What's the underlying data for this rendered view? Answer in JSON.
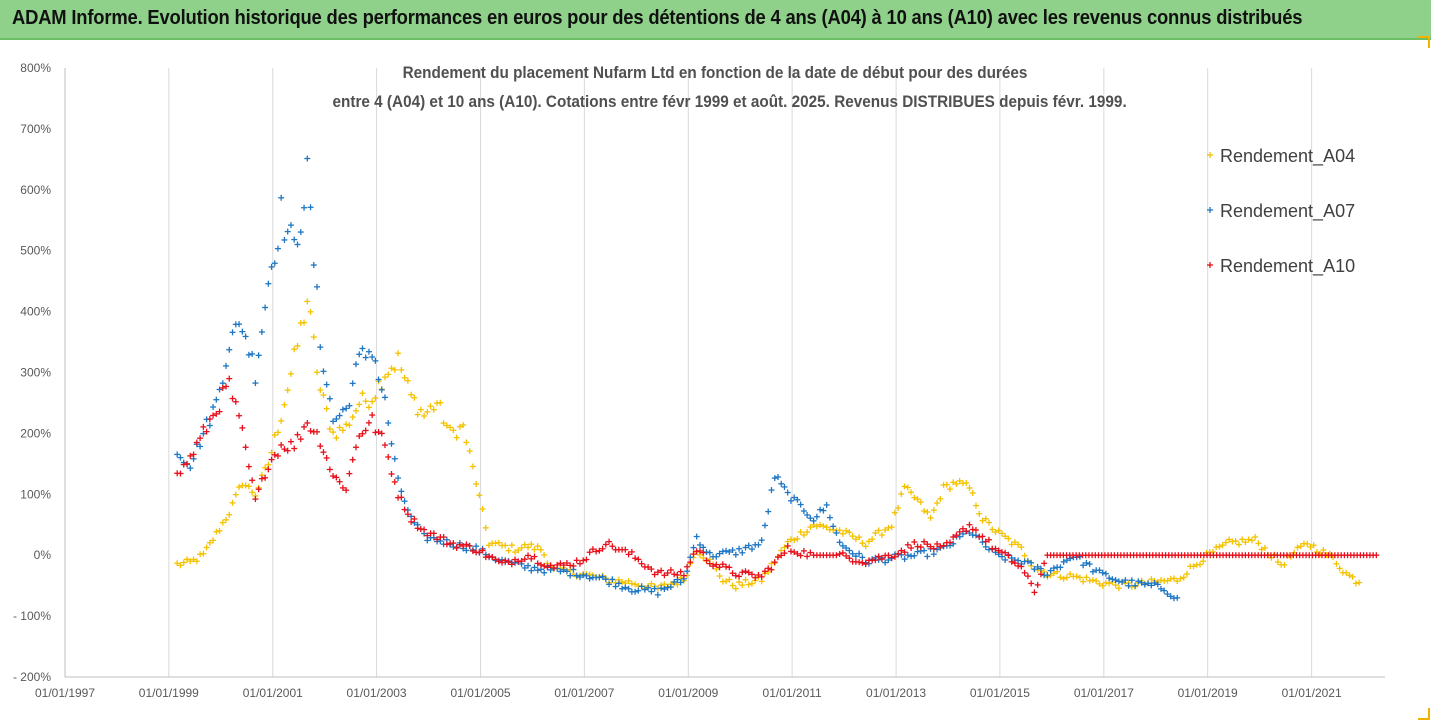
{
  "banner": {
    "title": "ADAM Informe. Evolution historique des performances en euros pour des détentions de 4 ans (A04) à 10 ans (A10) avec les revenus connus distribués"
  },
  "chart_data": {
    "type": "scatter",
    "title_line1": "Rendement du placement Nufarm Ltd en fonction de la date de début pour des durées",
    "title_line2": "entre 4 (A04) et 10 ans (A10). Cotations entre févr 1999 et août. 2025. Revenus DISTRIBUES depuis févr. 1999.",
    "marker": "+",
    "grid": "vertical",
    "legend_position": "top-right",
    "x_range": [
      "1997-01-01",
      "2022-06-01"
    ],
    "y_range": [
      -200,
      800
    ],
    "x_tick_labels": [
      "01/01/1997",
      "01/01/1999",
      "01/01/2001",
      "01/01/2003",
      "01/01/2005",
      "01/01/2007",
      "01/01/2009",
      "01/01/2011",
      "01/01/2013",
      "01/01/2015",
      "01/01/2017",
      "01/01/2019",
      "01/01/2021"
    ],
    "x_tick_dates": [
      "1997-01-01",
      "1999-01-01",
      "2001-01-01",
      "2003-01-01",
      "2005-01-01",
      "2007-01-01",
      "2009-01-01",
      "2011-01-01",
      "2013-01-01",
      "2015-01-01",
      "2017-01-01",
      "2019-01-01",
      "2021-01-01"
    ],
    "y_tick_labels": [
      "800%",
      "700%",
      "600%",
      "500%",
      "400%",
      "300%",
      "200%",
      "100%",
      "0%",
      "- 100%",
      "- 200%"
    ],
    "y_tick_values": [
      800,
      700,
      600,
      500,
      400,
      300,
      200,
      100,
      0,
      -100,
      -200
    ],
    "series": [
      {
        "name": "Rendement_A04",
        "color": "#f5c200",
        "points": [
          [
            "1999-03",
            -15
          ],
          [
            "1999-06",
            -12
          ],
          [
            "1999-09",
            0
          ],
          [
            "1999-12",
            35
          ],
          [
            "2000-03",
            70
          ],
          [
            "2000-06",
            120
          ],
          [
            "2000-09",
            100
          ],
          [
            "2000-12",
            150
          ],
          [
            "2001-03",
            230
          ],
          [
            "2001-06",
            320
          ],
          [
            "2001-09",
            420
          ],
          [
            "2001-12",
            270
          ],
          [
            "2002-03",
            200
          ],
          [
            "2002-06",
            210
          ],
          [
            "2002-09",
            250
          ],
          [
            "2002-12",
            260
          ],
          [
            "2003-03",
            300
          ],
          [
            "2003-06",
            320
          ],
          [
            "2003-09",
            260
          ],
          [
            "2003-12",
            230
          ],
          [
            "2004-03",
            250
          ],
          [
            "2004-06",
            200
          ],
          [
            "2004-09",
            210
          ],
          [
            "2004-12",
            120
          ],
          [
            "2005-03",
            20
          ],
          [
            "2005-06",
            15
          ],
          [
            "2005-09",
            10
          ],
          [
            "2005-12",
            15
          ],
          [
            "2006-03",
            10
          ],
          [
            "2006-06",
            -25
          ],
          [
            "2006-12",
            -30
          ],
          [
            "2007-06",
            -40
          ],
          [
            "2007-12",
            -45
          ],
          [
            "2008-06",
            -55
          ],
          [
            "2008-12",
            -40
          ],
          [
            "2009-03",
            10
          ],
          [
            "2009-06",
            -10
          ],
          [
            "2009-09",
            -40
          ],
          [
            "2009-12",
            -50
          ],
          [
            "2010-06",
            -40
          ],
          [
            "2010-12",
            20
          ],
          [
            "2011-06",
            50
          ],
          [
            "2011-12",
            40
          ],
          [
            "2012-06",
            20
          ],
          [
            "2012-12",
            50
          ],
          [
            "2013-03",
            110
          ],
          [
            "2013-06",
            90
          ],
          [
            "2013-09",
            60
          ],
          [
            "2013-12",
            110
          ],
          [
            "2014-03",
            120
          ],
          [
            "2014-06",
            110
          ],
          [
            "2014-09",
            60
          ],
          [
            "2014-12",
            40
          ],
          [
            "2015-06",
            10
          ],
          [
            "2015-09",
            -20
          ],
          [
            "2015-12",
            -30
          ],
          [
            "2016-06",
            -35
          ],
          [
            "2016-12",
            -45
          ],
          [
            "2017-06",
            -50
          ],
          [
            "2017-12",
            -45
          ],
          [
            "2018-06",
            -40
          ],
          [
            "2018-12",
            -5
          ],
          [
            "2019-06",
            20
          ],
          [
            "2019-12",
            25
          ],
          [
            "2020-06",
            -15
          ],
          [
            "2020-12",
            20
          ],
          [
            "2021-06",
            -5
          ],
          [
            "2021-09",
            -30
          ],
          [
            "2021-12",
            -45
          ]
        ]
      },
      {
        "name": "Rendement_A07",
        "color": "#1f77c4",
        "points": [
          [
            "1999-03",
            170
          ],
          [
            "1999-06",
            150
          ],
          [
            "1999-09",
            200
          ],
          [
            "1999-12",
            250
          ],
          [
            "2000-03",
            350
          ],
          [
            "2000-06",
            380
          ],
          [
            "2000-09",
            300
          ],
          [
            "2000-12",
            450
          ],
          [
            "2001-03",
            560
          ],
          [
            "2001-06",
            500
          ],
          [
            "2001-09",
            620
          ],
          [
            "2001-12",
            350
          ],
          [
            "2002-03",
            220
          ],
          [
            "2002-06",
            240
          ],
          [
            "2002-09",
            320
          ],
          [
            "2002-12",
            340
          ],
          [
            "2003-03",
            250
          ],
          [
            "2003-06",
            120
          ],
          [
            "2003-09",
            60
          ],
          [
            "2003-12",
            30
          ],
          [
            "2004-06",
            20
          ],
          [
            "2004-12",
            10
          ],
          [
            "2005-06",
            -10
          ],
          [
            "2005-12",
            -20
          ],
          [
            "2006-06",
            -25
          ],
          [
            "2006-12",
            -30
          ],
          [
            "2007-06",
            -40
          ],
          [
            "2007-12",
            -55
          ],
          [
            "2008-06",
            -60
          ],
          [
            "2008-12",
            -40
          ],
          [
            "2009-03",
            30
          ],
          [
            "2009-06",
            0
          ],
          [
            "2009-12",
            5
          ],
          [
            "2010-06",
            20
          ],
          [
            "2010-09",
            130
          ],
          [
            "2010-12",
            100
          ],
          [
            "2011-06",
            60
          ],
          [
            "2011-09",
            80
          ],
          [
            "2011-12",
            20
          ],
          [
            "2012-06",
            -10
          ],
          [
            "2012-12",
            -5
          ],
          [
            "2013-06",
            0
          ],
          [
            "2013-12",
            10
          ],
          [
            "2014-06",
            40
          ],
          [
            "2014-12",
            0
          ],
          [
            "2015-06",
            -10
          ],
          [
            "2015-12",
            -30
          ],
          [
            "2016-06",
            0
          ],
          [
            "2016-12",
            -30
          ],
          [
            "2017-06",
            -45
          ],
          [
            "2017-12",
            -50
          ],
          [
            "2018-03",
            -55
          ],
          [
            "2018-06",
            -70
          ]
        ]
      },
      {
        "name": "Rendement_A10",
        "color": "#e8101a",
        "points": [
          [
            "1999-03",
            130
          ],
          [
            "1999-06",
            160
          ],
          [
            "1999-09",
            200
          ],
          [
            "1999-12",
            240
          ],
          [
            "2000-03",
            280
          ],
          [
            "2000-06",
            200
          ],
          [
            "2000-09",
            90
          ],
          [
            "2000-12",
            150
          ],
          [
            "2001-03",
            180
          ],
          [
            "2001-06",
            180
          ],
          [
            "2001-09",
            220
          ],
          [
            "2001-12",
            190
          ],
          [
            "2002-03",
            130
          ],
          [
            "2002-06",
            110
          ],
          [
            "2002-09",
            200
          ],
          [
            "2002-12",
            220
          ],
          [
            "2003-03",
            180
          ],
          [
            "2003-06",
            100
          ],
          [
            "2003-09",
            60
          ],
          [
            "2003-12",
            40
          ],
          [
            "2004-06",
            20
          ],
          [
            "2004-12",
            10
          ],
          [
            "2005-06",
            -15
          ],
          [
            "2005-12",
            0
          ],
          [
            "2006-06",
            -20
          ],
          [
            "2006-12",
            -10
          ],
          [
            "2007-06",
            20
          ],
          [
            "2007-12",
            0
          ],
          [
            "2008-06",
            -30
          ],
          [
            "2008-12",
            -30
          ],
          [
            "2009-03",
            10
          ],
          [
            "2009-06",
            -10
          ],
          [
            "2009-12",
            -30
          ],
          [
            "2010-06",
            -35
          ],
          [
            "2010-12",
            10
          ],
          [
            "2011-06",
            0
          ],
          [
            "2011-12",
            0
          ],
          [
            "2012-06",
            -10
          ],
          [
            "2012-12",
            0
          ],
          [
            "2013-06",
            20
          ],
          [
            "2013-12",
            10
          ],
          [
            "2014-03",
            30
          ],
          [
            "2014-06",
            50
          ],
          [
            "2014-12",
            10
          ],
          [
            "2015-06",
            -20
          ],
          [
            "2015-09",
            -60
          ],
          [
            "2015-12",
            0
          ],
          [
            "2022-04",
            0
          ]
        ]
      }
    ]
  }
}
